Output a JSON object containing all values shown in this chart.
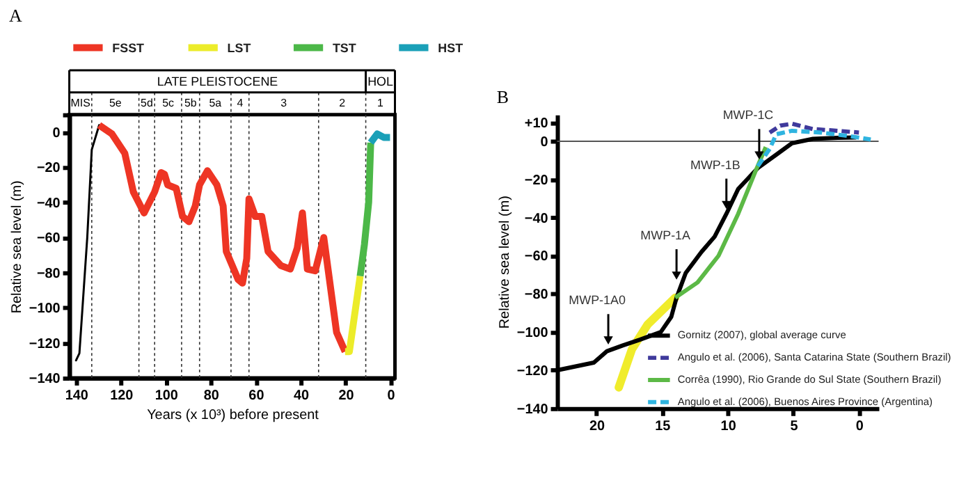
{
  "chart_data": [
    {
      "type": "line",
      "title": "A",
      "xlabel": "Years (x 10³) before present",
      "ylabel": "Relative sea level (m)",
      "legend": "top",
      "grid": false,
      "xlim": [
        143,
        -2
      ],
      "xticks": [
        140,
        120,
        100,
        80,
        60,
        40,
        20,
        0
      ],
      "ylim": [
        -140,
        10
      ],
      "yticks": [
        {
          "value": 10,
          "label": null
        },
        0,
        -20,
        -40,
        -60,
        -80,
        -100,
        -120,
        -140
      ],
      "ref_lines": [
        {
          "axis": "x",
          "value": 133,
          "line_style": "dotted"
        },
        {
          "axis": "x",
          "value": 112,
          "line_style": "dotted"
        },
        {
          "axis": "x",
          "value": 105,
          "line_style": "dotted"
        },
        {
          "axis": "x",
          "value": 93,
          "line_style": "dotted"
        },
        {
          "axis": "x",
          "value": 85,
          "line_style": "dotted"
        },
        {
          "axis": "x",
          "value": 71,
          "line_style": "dotted"
        },
        {
          "axis": "x",
          "value": 63,
          "line_style": "dotted"
        },
        {
          "axis": "x",
          "value": 32,
          "line_style": "dotted"
        },
        {
          "axis": "x",
          "value": 11,
          "line_style": "dotted"
        }
      ],
      "annotations": [
        "LATE PLEISTOCENE",
        "HOL",
        "MIS",
        "5e",
        "5d",
        "5c",
        "5b",
        "5a",
        "4",
        "3",
        "2",
        "1"
      ],
      "series": [
        {
          "color": "#000000",
          "x": [
            140,
            138.5,
            135,
            133,
            129.7
          ],
          "values": [
            -130,
            -126,
            -60,
            -10,
            4
          ]
        },
        {
          "name": "FSST",
          "color": "#ee3524",
          "x": [
            129.7,
            124,
            118.3,
            114.5,
            109.7,
            105,
            102.1,
            100.6,
            99.2,
            95.4,
            92.6,
            89.7,
            86.9,
            85,
            81.5,
            77.3,
            74.5,
            73.1,
            67.8,
            65.9,
            64,
            63,
            60.2,
            57.3,
            54.5,
            48.8,
            44.6,
            41.5,
            39.2,
            37,
            33.5,
            29.7,
            24,
            20.2
          ],
          "values": [
            4,
            -1,
            -12,
            -34,
            -46,
            -34,
            -23,
            -24,
            -30,
            -32,
            -48,
            -51,
            -42,
            -30,
            -22,
            -30,
            -42,
            -68,
            -84,
            -86,
            -72,
            -38,
            -48,
            -48,
            -68,
            -76,
            -78,
            -66,
            -46,
            -78,
            -79,
            -60,
            -114,
            -125
          ]
        },
        {
          "name": "LST",
          "color": "#ecec2a",
          "x": [
            20.2,
            18.3,
            13.5
          ],
          "values": [
            -125,
            -125,
            -82
          ]
        },
        {
          "name": "TST",
          "color": "#4cb848",
          "x": [
            13.5,
            11.6,
            9.7,
            8.8
          ],
          "values": [
            -82,
            -64,
            -40,
            -6
          ]
        },
        {
          "name": "HST",
          "color": "#1aa0b8",
          "x": [
            8.8,
            5.9,
            3,
            0.2
          ],
          "values": [
            -6,
            -1,
            -3,
            -3
          ]
        }
      ]
    },
    {
      "type": "line",
      "title": "B",
      "ylabel": "Relative sea level (m)",
      "legend": "bottom right",
      "grid": false,
      "xlim": [
        23,
        -1.5
      ],
      "xticks": [
        20,
        15,
        10,
        5,
        0
      ],
      "ylim": [
        -140,
        14
      ],
      "yticks": [
        {
          "value": 10,
          "label": "+10"
        },
        0,
        -20,
        -40,
        -60,
        -80,
        -100,
        -120,
        -140
      ],
      "ref_lines": [
        {
          "axis": "y",
          "value": 0,
          "color": "#555555"
        }
      ],
      "annotations": [
        {
          "text": "MWP-1C",
          "x": 7.6,
          "y": -11
        },
        {
          "text": "MWP-1B",
          "x": 10.1,
          "y": -37
        },
        {
          "text": "MWP-1A",
          "x": 13.9,
          "y": -74
        },
        {
          "text": "MWP-1A0",
          "x": 19.1,
          "y": -108
        }
      ],
      "series": [
        {
          "name": "Gornitz (2007), global average curve",
          "color": "#000000",
          "x": [
            23,
            20.2,
            19.2,
            18,
            16.7,
            15.1,
            14.3,
            13.9,
            13.2,
            12,
            11,
            10.1,
            9.2,
            7.7,
            6.3,
            5.1,
            3.5,
            1.6,
            0.2
          ],
          "values": [
            -120,
            -116,
            -110,
            -107,
            -104,
            -100,
            -92,
            -82,
            -69,
            -58,
            -50,
            -38,
            -25,
            -14,
            -7,
            -1,
            1.3,
            1.8,
            2
          ]
        },
        {
          "name": "Angulo et al. (2006), Santa Catarina State (Southern Brazil)",
          "color": "#3f3a9c",
          "line_style": "dashed",
          "x": [
            6.8,
            6,
            5.1,
            3.5,
            1.6,
            0
          ],
          "values": [
            4.6,
            8.2,
            9.2,
            6.4,
            5.5,
            4.6
          ]
        },
        {
          "name": "Corrêa (1990), Rio Grande do Sul State (Southern Brazil)",
          "color": "#5cb946",
          "x": [
            14,
            12.3,
            10.7,
            9.2,
            7.9,
            7.1
          ],
          "values": [
            -82,
            -74,
            -60,
            -38,
            -16,
            -3
          ]
        },
        {
          "name": "Angulo et al. (2006), Buenos Aires Province (Argentina)",
          "color": "#2fb4e0",
          "line_style": "dashed",
          "x": [
            7.7,
            6.8,
            6.3,
            5.1,
            2.9,
            0.7,
            -0.9
          ],
          "values": [
            -13,
            -4,
            3.7,
            5.5,
            4.6,
            2.7,
            0.9
          ]
        },
        {
          "color": "#f0ec2c",
          "x": [
            18.3,
            17.3,
            16.1,
            14
          ],
          "values": [
            -129,
            -109,
            -96,
            -82
          ]
        }
      ]
    }
  ]
}
